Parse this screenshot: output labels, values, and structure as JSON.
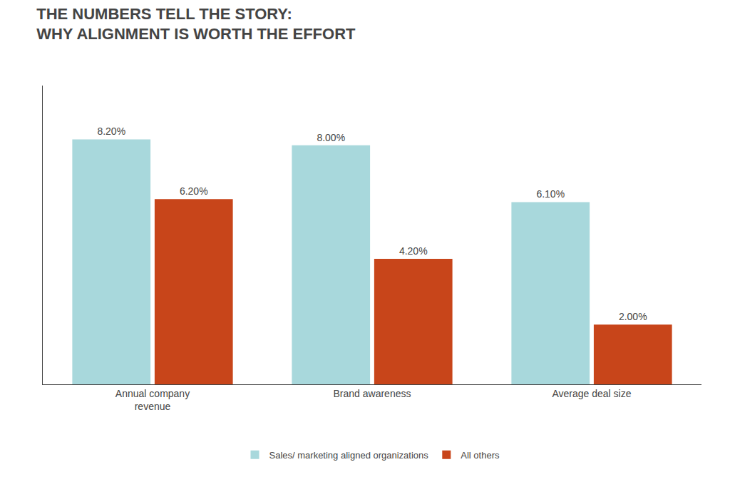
{
  "chart_data": {
    "type": "bar",
    "title": "THE NUMBERS TELL THE STORY:\nWHY ALIGNMENT IS WORTH THE EFFORT",
    "categories": [
      "Annual company\nrevenue",
      "Brand awareness",
      "Average deal size"
    ],
    "series": [
      {
        "name": "Sales/ marketing aligned organizations",
        "color": "#a8d8dc",
        "values": [
          8.2,
          8.0,
          6.1
        ],
        "value_labels": [
          "8.20%",
          "8.00%",
          "6.10%"
        ]
      },
      {
        "name": "All others",
        "color": "#c8451a",
        "values": [
          6.2,
          4.2,
          2.0
        ],
        "value_labels": [
          "6.20%",
          "4.20%",
          "2.00%"
        ]
      }
    ],
    "ylim": [
      0,
      10
    ],
    "grid": false,
    "legend": "bottom",
    "data_labels": true,
    "tick_labels": "x"
  }
}
